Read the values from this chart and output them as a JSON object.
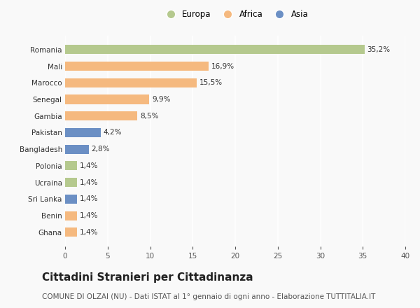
{
  "categories": [
    "Romania",
    "Mali",
    "Marocco",
    "Senegal",
    "Gambia",
    "Pakistan",
    "Bangladesh",
    "Polonia",
    "Ucraina",
    "Sri Lanka",
    "Benin",
    "Ghana"
  ],
  "values": [
    35.2,
    16.9,
    15.5,
    9.9,
    8.5,
    4.2,
    2.8,
    1.4,
    1.4,
    1.4,
    1.4,
    1.4
  ],
  "labels": [
    "35,2%",
    "16,9%",
    "15,5%",
    "9,9%",
    "8,5%",
    "4,2%",
    "2,8%",
    "1,4%",
    "1,4%",
    "1,4%",
    "1,4%",
    "1,4%"
  ],
  "continents": [
    "Europa",
    "Africa",
    "Africa",
    "Africa",
    "Africa",
    "Asia",
    "Asia",
    "Europa",
    "Europa",
    "Asia",
    "Africa",
    "Africa"
  ],
  "colors": {
    "Europa": "#b5c98e",
    "Africa": "#f5b97f",
    "Asia": "#6b8fc4"
  },
  "legend_order": [
    "Europa",
    "Africa",
    "Asia"
  ],
  "xlim": [
    0,
    40
  ],
  "xticks": [
    0,
    5,
    10,
    15,
    20,
    25,
    30,
    35,
    40
  ],
  "title": "Cittadini Stranieri per Cittadinanza",
  "subtitle": "COMUNE DI OLZAI (NU) - Dati ISTAT al 1° gennaio di ogni anno - Elaborazione TUTTITALIA.IT",
  "background_color": "#f9f9f9",
  "bar_height": 0.55,
  "title_fontsize": 11,
  "subtitle_fontsize": 7.5,
  "label_fontsize": 7.5,
  "tick_fontsize": 7.5,
  "legend_fontsize": 8.5
}
